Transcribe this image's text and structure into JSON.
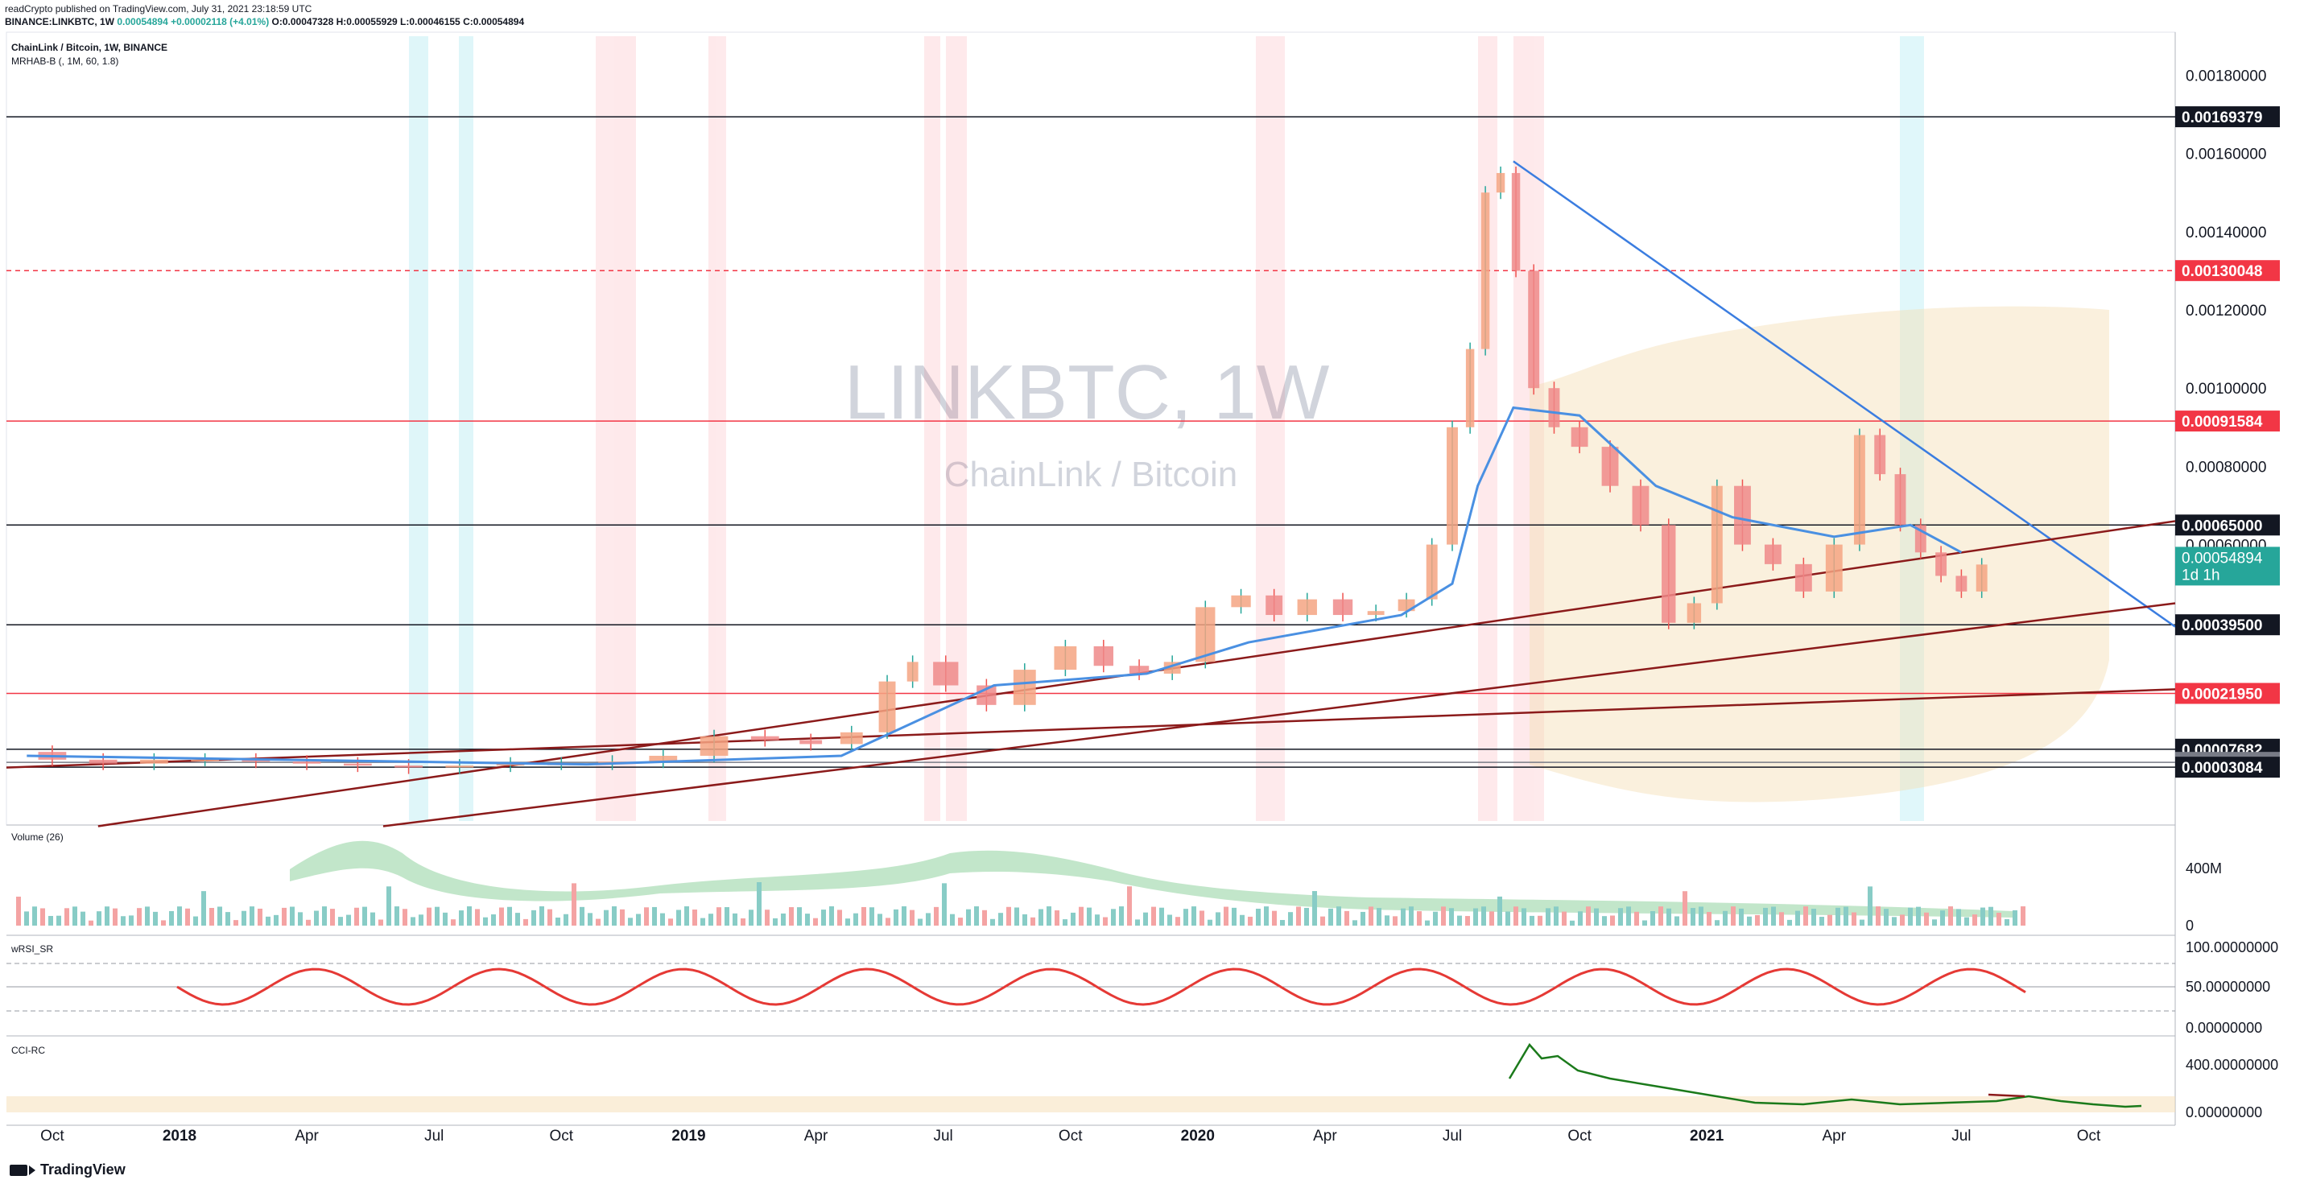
{
  "header": {
    "publisher_line": "readCrypto published on TradingView.com, July 31, 2021 23:18:59 UTC",
    "ohlc_line_symbol": "BINANCE:LINKBTC, 1W",
    "ohlc_line_values": "0.00054894",
    "ohlc_line_change": "+0.00002118 (+4.01%)",
    "ohlc_line_rest": "O:0.00047328 H:0.00055929 L:0.00046155 C:0.00054894"
  },
  "main_pane": {
    "title": "ChainLink / Bitcoin, 1W, BINANCE",
    "indicator": "MRHAB-B (, 1M, 60, 1.8)",
    "watermark_symbol": "LINKBTC, 1W",
    "watermark_name": "ChainLink / Bitcoin"
  },
  "volume_pane": {
    "label": "Volume (26)",
    "axis": [
      "400M",
      "0"
    ]
  },
  "wrsi_pane": {
    "label": "wRSI_SR",
    "axis": [
      "100.00000000",
      "50.00000000",
      "0.00000000"
    ]
  },
  "cci_pane": {
    "label": "CCI-RC",
    "axis": [
      "400.00000000",
      "0.00000000"
    ]
  },
  "footer": {
    "brand": "TradingView"
  },
  "chart_data": {
    "type": "candlestick",
    "symbol": "LINKBTC",
    "timeframe": "1W",
    "exchange": "BINANCE",
    "price_axis_ticks": [
      "0.00180000",
      "0.00160000",
      "0.00140000",
      "0.00120000",
      "0.00100000",
      "0.00080000",
      "0.00060000"
    ],
    "price_axis_values": [
      0.0018,
      0.0016,
      0.0014,
      0.0012,
      0.001,
      0.0008,
      0.0006
    ],
    "price_range": [
      -0.000117,
      0.00191
    ],
    "time_axis_ticks": [
      "Oct",
      "2018",
      "Apr",
      "Jul",
      "Oct",
      "2019",
      "Apr",
      "Jul",
      "Oct",
      "2020",
      "Apr",
      "Jul",
      "Oct",
      "2021",
      "Apr",
      "Jul",
      "Oct"
    ],
    "time_axis_values": [
      2017.75,
      2018.0,
      2018.25,
      2018.5,
      2018.75,
      2019.0,
      2019.25,
      2019.5,
      2019.75,
      2020.0,
      2020.25,
      2020.5,
      2020.75,
      2021.0,
      2021.25,
      2021.5,
      2021.75
    ],
    "time_range": [
      2017.66,
      2021.92
    ],
    "last_price": {
      "text": "0.00054894",
      "countdown": "1d 1h",
      "value": 0.00054894,
      "color": "#26a69a"
    },
    "horizontal_levels": [
      {
        "label": "0.00169379",
        "value": 0.00169379,
        "color": "#131722",
        "style": "solid"
      },
      {
        "label": "0.00130048",
        "value": 0.00130048,
        "color": "#f23645",
        "style": "dashed"
      },
      {
        "label": "0.00091584",
        "value": 0.00091584,
        "color": "#f23645",
        "style": "solid"
      },
      {
        "label": "0.00065000",
        "value": 0.00065,
        "color": "#131722",
        "style": "solid"
      },
      {
        "label": "0.00039500",
        "value": 0.000395,
        "color": "#131722",
        "style": "solid"
      },
      {
        "label": "0.00021950",
        "value": 0.0002195,
        "color": "#f23645",
        "style": "solid"
      },
      {
        "label": "0.00007682",
        "value": 7.682e-05,
        "color": "#131722",
        "style": "solid"
      },
      {
        "label": "0.00004319",
        "value": 4.319e-05,
        "color": "#787b86",
        "style": "solid"
      },
      {
        "label": "0.00003084",
        "value": 3.084e-05,
        "color": "#131722",
        "style": "solid"
      }
    ],
    "price_series": [
      [
        2017.7,
        7e-05
      ],
      [
        2017.8,
        5e-05
      ],
      [
        2017.9,
        4e-05
      ],
      [
        2018.0,
        5e-05
      ],
      [
        2018.1,
        5e-05
      ],
      [
        2018.2,
        4.5e-05
      ],
      [
        2018.3,
        4e-05
      ],
      [
        2018.4,
        3.5e-05
      ],
      [
        2018.5,
        3e-05
      ],
      [
        2018.6,
        3.5e-05
      ],
      [
        2018.7,
        4e-05
      ],
      [
        2018.8,
        4e-05
      ],
      [
        2018.9,
        4.5e-05
      ],
      [
        2019.0,
        6e-05
      ],
      [
        2019.1,
        0.00011
      ],
      [
        2019.2,
        0.0001
      ],
      [
        2019.28,
        9e-05
      ],
      [
        2019.36,
        0.00012
      ],
      [
        2019.42,
        0.00025
      ],
      [
        2019.46,
        0.0003
      ],
      [
        2019.55,
        0.00024
      ],
      [
        2019.62,
        0.00019
      ],
      [
        2019.7,
        0.00028
      ],
      [
        2019.78,
        0.00034
      ],
      [
        2019.85,
        0.00029
      ],
      [
        2019.92,
        0.00027
      ],
      [
        2019.98,
        0.0003
      ],
      [
        2020.05,
        0.00044
      ],
      [
        2020.12,
        0.00047
      ],
      [
        2020.18,
        0.00042
      ],
      [
        2020.25,
        0.00046
      ],
      [
        2020.32,
        0.00042
      ],
      [
        2020.38,
        0.00043
      ],
      [
        2020.44,
        0.00046
      ],
      [
        2020.48,
        0.0006
      ],
      [
        2020.52,
        0.0009
      ],
      [
        2020.55,
        0.0011
      ],
      [
        2020.58,
        0.0015
      ],
      [
        2020.61,
        0.00155
      ],
      [
        2020.64,
        0.0013
      ],
      [
        2020.68,
        0.001
      ],
      [
        2020.72,
        0.0009
      ],
      [
        2020.78,
        0.00085
      ],
      [
        2020.84,
        0.00075
      ],
      [
        2020.9,
        0.00065
      ],
      [
        2020.95,
        0.0004
      ],
      [
        2021.0,
        0.00045
      ],
      [
        2021.04,
        0.00075
      ],
      [
        2021.1,
        0.0006
      ],
      [
        2021.16,
        0.00055
      ],
      [
        2021.22,
        0.00048
      ],
      [
        2021.28,
        0.0006
      ],
      [
        2021.32,
        0.00088
      ],
      [
        2021.36,
        0.00078
      ],
      [
        2021.4,
        0.00065
      ],
      [
        2021.44,
        0.00058
      ],
      [
        2021.48,
        0.00052
      ],
      [
        2021.52,
        0.00048
      ],
      [
        2021.56,
        0.000549
      ]
    ],
    "mrhab_line": [
      [
        2017.7,
        6e-05
      ],
      [
        2018.2,
        5e-05
      ],
      [
        2018.8,
        3.8e-05
      ],
      [
        2019.3,
        6e-05
      ],
      [
        2019.45,
        0.00015
      ],
      [
        2019.6,
        0.00024
      ],
      [
        2019.9,
        0.00027
      ],
      [
        2020.1,
        0.00035
      ],
      [
        2020.4,
        0.00042
      ],
      [
        2020.5,
        0.0005
      ],
      [
        2020.55,
        0.00075
      ],
      [
        2020.62,
        0.00095
      ],
      [
        2020.75,
        0.00093
      ],
      [
        2020.9,
        0.00075
      ],
      [
        2021.05,
        0.00067
      ],
      [
        2021.25,
        0.00062
      ],
      [
        2021.4,
        0.00065
      ],
      [
        2021.5,
        0.00058
      ]
    ],
    "trend_lines": [
      {
        "from": [
          2020.62,
          0.00158
        ],
        "to": [
          2021.92,
          0.00039
        ],
        "color": "#3b7de0"
      },
      {
        "from": [
          2017.84,
          -0.00012
        ],
        "to": [
          2021.92,
          0.00066
        ],
        "color": "#8b1a1a"
      },
      {
        "from": [
          2018.4,
          -0.00012
        ],
        "to": [
          2021.92,
          0.00045
        ],
        "color": "#8b1a1a"
      },
      {
        "from": [
          2017.66,
          3e-05
        ],
        "to": [
          2021.92,
          0.00023
        ],
        "color": "#8b1a1a"
      }
    ],
    "volume_axis_ticks": [
      "400M",
      "0"
    ],
    "wrsi_axis_ticks": [
      "100.00000000",
      "50.00000000",
      "0.00000000"
    ],
    "cci_axis_ticks": [
      "400.00000000",
      "0.00000000"
    ]
  }
}
